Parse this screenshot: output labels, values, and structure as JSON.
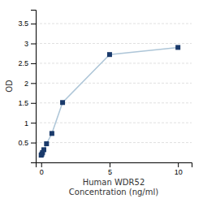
{
  "chart_data": {
    "type": "line",
    "x": [
      0.0,
      0.049,
      0.098,
      0.195,
      0.39,
      0.781,
      1.563,
      5.0,
      10.0
    ],
    "values": [
      0.182,
      0.21,
      0.25,
      0.32,
      0.47,
      0.73,
      1.51,
      2.72,
      2.9
    ],
    "color": "#aec6d8",
    "colors": [
      "#1a3a6b",
      "#1a3a6b",
      "#1a3a6b",
      "#1a3a6b",
      "#1a3a6b",
      "#1a3a6b",
      "#1a3a6b",
      "#1a3a6b",
      "#1a3a6b"
    ],
    "marker": "square",
    "xlabel": [
      "Human WDR52",
      "Concentration (ng/ml)"
    ],
    "ylabel": "OD",
    "xlim": [
      -0.4,
      11.0
    ],
    "ylim": [
      0.0,
      3.85
    ],
    "xticks": [
      0,
      5,
      10
    ],
    "yticks": [
      0.5,
      1,
      1.5,
      2,
      2.5,
      3,
      3.5
    ],
    "grid": "y"
  }
}
